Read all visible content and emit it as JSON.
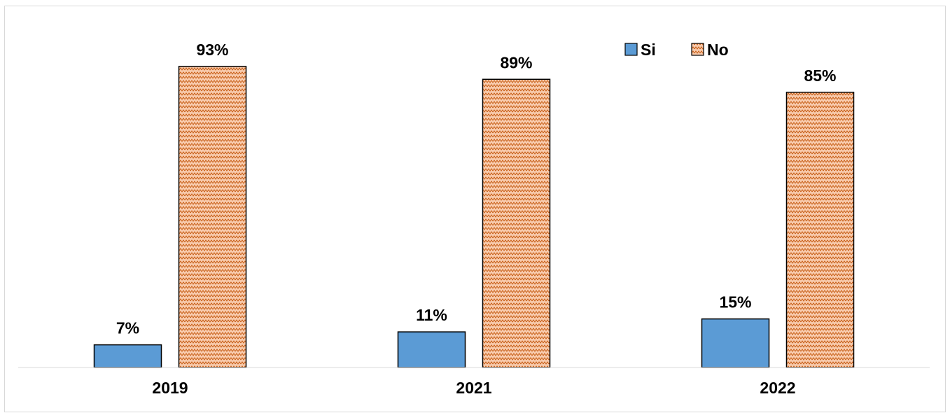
{
  "chart_data": {
    "type": "bar",
    "title": "",
    "xlabel": "",
    "ylabel": "",
    "categories": [
      "2019",
      "2021",
      "2022"
    ],
    "ylim": [
      0,
      100
    ],
    "grid": false,
    "legend_position": "top-right",
    "series": [
      {
        "name": "Si",
        "values": [
          7,
          11,
          15
        ],
        "labels": [
          "7%",
          "11%",
          "15%"
        ],
        "color": "#5b9bd5",
        "fill": "solid"
      },
      {
        "name": "No",
        "values": [
          93,
          89,
          85
        ],
        "labels": [
          "93%",
          "89%",
          "85%"
        ],
        "color": "#f4b183",
        "fill": "zigzag-pattern"
      }
    ]
  }
}
